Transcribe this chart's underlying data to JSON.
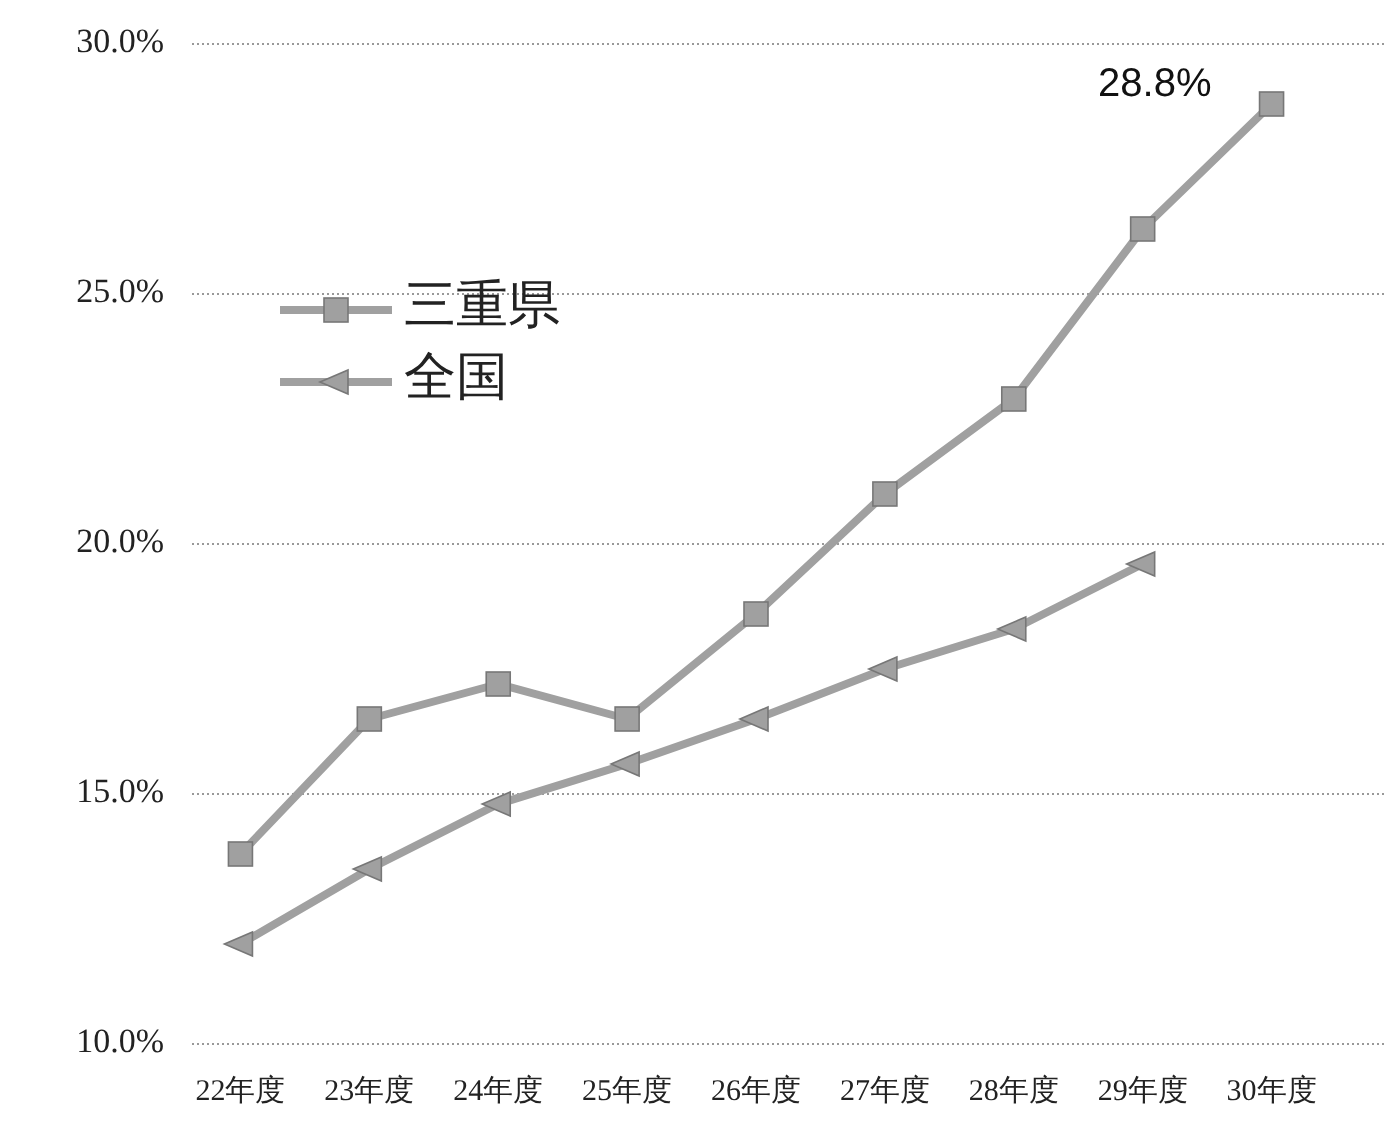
{
  "chart_data": {
    "type": "line",
    "categories": [
      "22年度",
      "23年度",
      "24年度",
      "25年度",
      "26年度",
      "27年度",
      "28年度",
      "29年度",
      "30年度"
    ],
    "series": [
      {
        "name": "三重県",
        "color": "#a0a0a0",
        "marker": "square",
        "values": [
          13.8,
          16.5,
          17.2,
          16.5,
          18.6,
          21.0,
          22.9,
          26.3,
          28.8
        ]
      },
      {
        "name": "全国",
        "color": "#a0a0a0",
        "marker": "triangle",
        "values": [
          12.0,
          13.5,
          14.8,
          15.6,
          16.5,
          17.5,
          18.3,
          19.6,
          null
        ]
      }
    ],
    "ylim": [
      10,
      30
    ],
    "yticks": [
      {
        "value": 10,
        "label": "10.0%"
      },
      {
        "value": 15,
        "label": "15.0%"
      },
      {
        "value": 20,
        "label": "20.0%"
      },
      {
        "value": 25,
        "label": "25.0%"
      },
      {
        "value": 30,
        "label": "30.0%"
      }
    ],
    "grid": "y",
    "legend": "top left",
    "line_style": "solid",
    "annotations": [
      {
        "text": "28.8%",
        "x": "30年度",
        "y": 28.8
      }
    ]
  }
}
